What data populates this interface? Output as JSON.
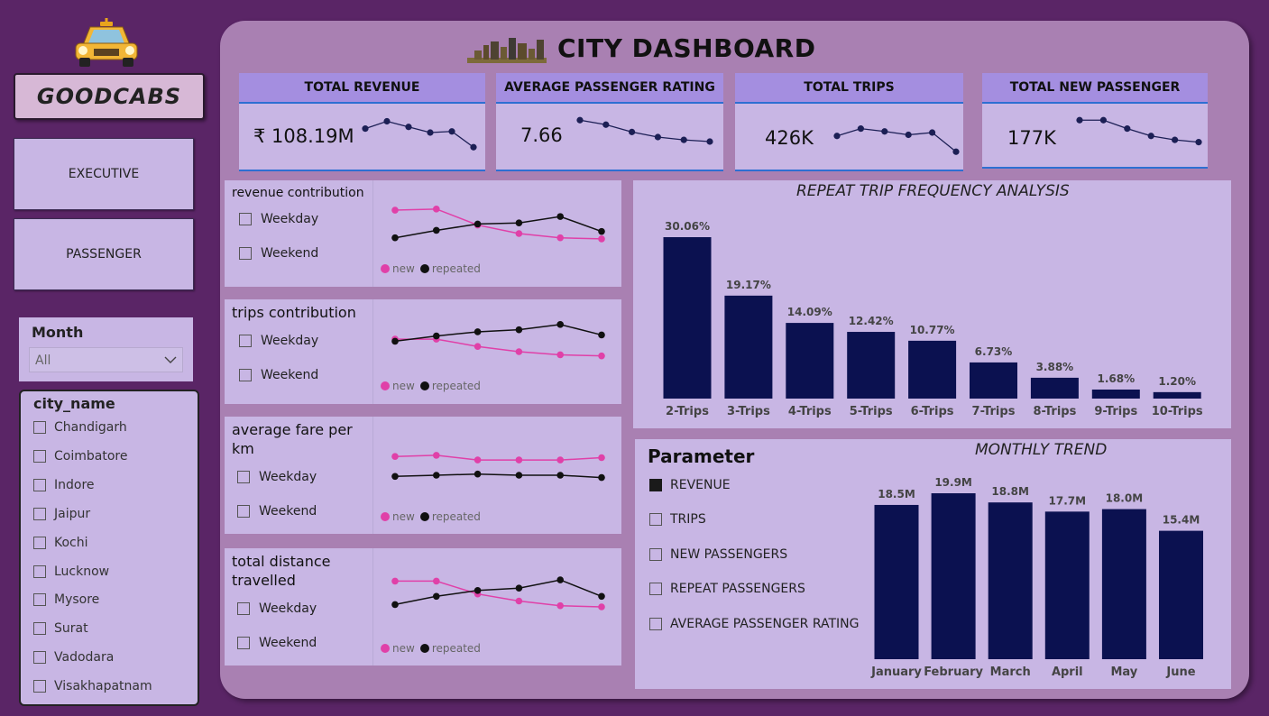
{
  "sidebar": {
    "brand": "GOODCABS",
    "logo_icon": "taxi-icon",
    "nav": [
      {
        "label": "EXECUTIVE"
      },
      {
        "label": "PASSENGER"
      }
    ],
    "month_slicer": {
      "title": "Month",
      "selected": "All"
    },
    "city_slicer": {
      "title": "city_name",
      "items": [
        "Chandigarh",
        "Coimbatore",
        "Indore",
        "Jaipur",
        "Kochi",
        "Lucknow",
        "Mysore",
        "Surat",
        "Vadodara",
        "Visakhapatnam"
      ]
    }
  },
  "header": {
    "title": "CITY DASHBOARD",
    "icon": "skyline-icon"
  },
  "kpis": [
    {
      "label": "TOTAL REVENUE",
      "value": "₹ 108.19M",
      "trend": [
        55,
        68,
        58,
        48,
        50,
        22
      ]
    },
    {
      "label": "AVERAGE PASSENGER RATING",
      "value": "7.66",
      "trend": [
        70,
        62,
        49,
        40,
        35,
        32
      ]
    },
    {
      "label": "TOTAL TRIPS",
      "value": "426K",
      "trend": [
        42,
        55,
        50,
        44,
        48,
        14
      ]
    },
    {
      "label": "TOTAL NEW PASSENGER",
      "value": "177K",
      "trend": [
        70,
        70,
        55,
        42,
        35,
        31
      ]
    }
  ],
  "contribution_panels": [
    {
      "title": "revenue contribution",
      "weekday": "Weekday",
      "weekend": "Weekend",
      "legend_new": "new",
      "legend_repeated": "repeated",
      "new": [
        72,
        73,
        58,
        50,
        46,
        45
      ],
      "repeated": [
        46,
        53,
        59,
        60,
        66,
        52
      ]
    },
    {
      "title": "trips contribution",
      "weekday": "Weekday",
      "weekend": "Weekend",
      "legend_new": "new",
      "legend_repeated": "repeated",
      "new": [
        62,
        62,
        55,
        50,
        47,
        46
      ],
      "repeated": [
        60,
        65,
        69,
        71,
        76,
        66
      ]
    },
    {
      "title": "average fare per km",
      "weekday": "Weekday",
      "weekend": "Weekend",
      "legend_new": "new",
      "legend_repeated": "repeated",
      "new": [
        66,
        67,
        63,
        63,
        63,
        65
      ],
      "repeated": [
        49,
        50,
        51,
        50,
        50,
        48
      ]
    },
    {
      "title": "total distance travelled",
      "weekday": "Weekday",
      "weekend": "Weekend",
      "legend_new": "new",
      "legend_repeated": "repeated",
      "new": [
        72,
        72,
        61,
        55,
        51,
        50
      ],
      "repeated": [
        52,
        59,
        64,
        66,
        73,
        59
      ]
    }
  ],
  "colors": {
    "bar": "#0b1150",
    "new": "#e040a8",
    "repeated": "#111111",
    "kpi_line": "#1c1f55"
  },
  "repeat_chart": {
    "title": "REPEAT TRIP FREQUENCY ANALYSIS",
    "chart_data": {
      "type": "bar",
      "categories": [
        "2-Trips",
        "3-Trips",
        "4-Trips",
        "5-Trips",
        "6-Trips",
        "7-Trips",
        "8-Trips",
        "9-Trips",
        "10-Trips"
      ],
      "values": [
        30.06,
        19.17,
        14.09,
        12.42,
        10.77,
        6.73,
        3.88,
        1.68,
        1.2
      ],
      "labels": [
        "30.06%",
        "19.17%",
        "14.09%",
        "12.42%",
        "10.77%",
        "6.73%",
        "3.88%",
        "1.68%",
        "1.20%"
      ],
      "title": "REPEAT TRIP FREQUENCY ANALYSIS"
    }
  },
  "trend_panel": {
    "param_title": "Parameter",
    "params": [
      {
        "label": "REVENUE",
        "checked": true
      },
      {
        "label": "TRIPS",
        "checked": false
      },
      {
        "label": "NEW PASSENGERS",
        "checked": false
      },
      {
        "label": "REPEAT PASSENGERS",
        "checked": false
      },
      {
        "label": "AVERAGE PASSENGER RATING",
        "checked": false
      }
    ],
    "title": "MONTHLY TREND",
    "chart_data": {
      "type": "bar",
      "categories": [
        "January",
        "February",
        "March",
        "April",
        "May",
        "June"
      ],
      "values": [
        18.5,
        19.9,
        18.8,
        17.7,
        18.0,
        15.4
      ],
      "labels": [
        "18.5M",
        "19.9M",
        "18.8M",
        "17.7M",
        "18.0M",
        "15.4M"
      ],
      "title": "MONTHLY TREND"
    }
  }
}
